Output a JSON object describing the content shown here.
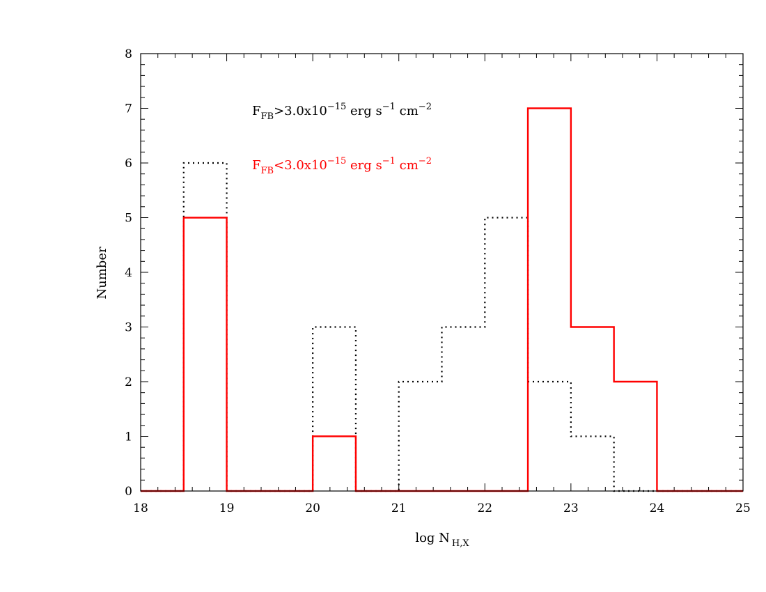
{
  "chart_data": {
    "type": "histogram",
    "xlabel": {
      "main": "log N",
      "sub": "H,X"
    },
    "ylabel": "Number",
    "xlim": [
      18,
      25
    ],
    "ylim": [
      0,
      8
    ],
    "xticks": [
      18,
      19,
      20,
      21,
      22,
      23,
      24,
      25
    ],
    "yticks": [
      0,
      1,
      2,
      3,
      4,
      5,
      6,
      7,
      8
    ],
    "bin_edges": [
      18,
      18.5,
      19,
      19.5,
      20,
      20.5,
      21,
      21.5,
      22,
      22.5,
      23,
      23.5,
      24,
      24.5,
      25
    ],
    "grid": false,
    "series": [
      {
        "legend": {
          "prefix": "F",
          "sub": "FB",
          "rel": ">3.0x10",
          "exp": "−15",
          "units_a": " erg s",
          "exp2": "−1",
          "units_b": " cm",
          "exp3": "−2"
        },
        "color": "#000000",
        "style": "dotted",
        "values": [
          0,
          6,
          0,
          0,
          3,
          0,
          2,
          3,
          5,
          2,
          1,
          0,
          0,
          0
        ]
      },
      {
        "legend": {
          "prefix": "F",
          "sub": "FB",
          "rel": "<3.0x10",
          "exp": "−15",
          "units_a": " erg s",
          "exp2": "−1",
          "units_b": " cm",
          "exp3": "−2"
        },
        "color": "#ff0000",
        "style": "solid",
        "values": [
          0,
          5,
          0,
          0,
          1,
          0,
          0,
          0,
          0,
          7,
          3,
          2,
          0,
          0
        ]
      }
    ]
  }
}
